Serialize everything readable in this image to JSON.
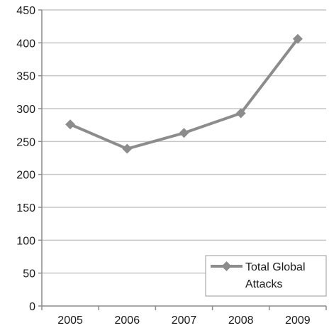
{
  "chart_data": {
    "type": "line",
    "categories": [
      "2005",
      "2006",
      "2007",
      "2008",
      "2009"
    ],
    "series": [
      {
        "name": "Total Global Attacks",
        "values": [
          276,
          239,
          263,
          293,
          406
        ]
      }
    ],
    "title": "",
    "xlabel": "",
    "ylabel": "",
    "ylim": [
      0,
      450
    ],
    "yticks": [
      0,
      50,
      100,
      150,
      200,
      250,
      300,
      350,
      400,
      450
    ],
    "grid": true,
    "legend_position": "bottom-right",
    "legend_lines": [
      "Total Global",
      "Attacks"
    ],
    "colors": {
      "series": "#8c8c8c",
      "grid": "#c6c6c6",
      "axis": "#8c8c8c",
      "text": "#1a1a1a"
    }
  }
}
